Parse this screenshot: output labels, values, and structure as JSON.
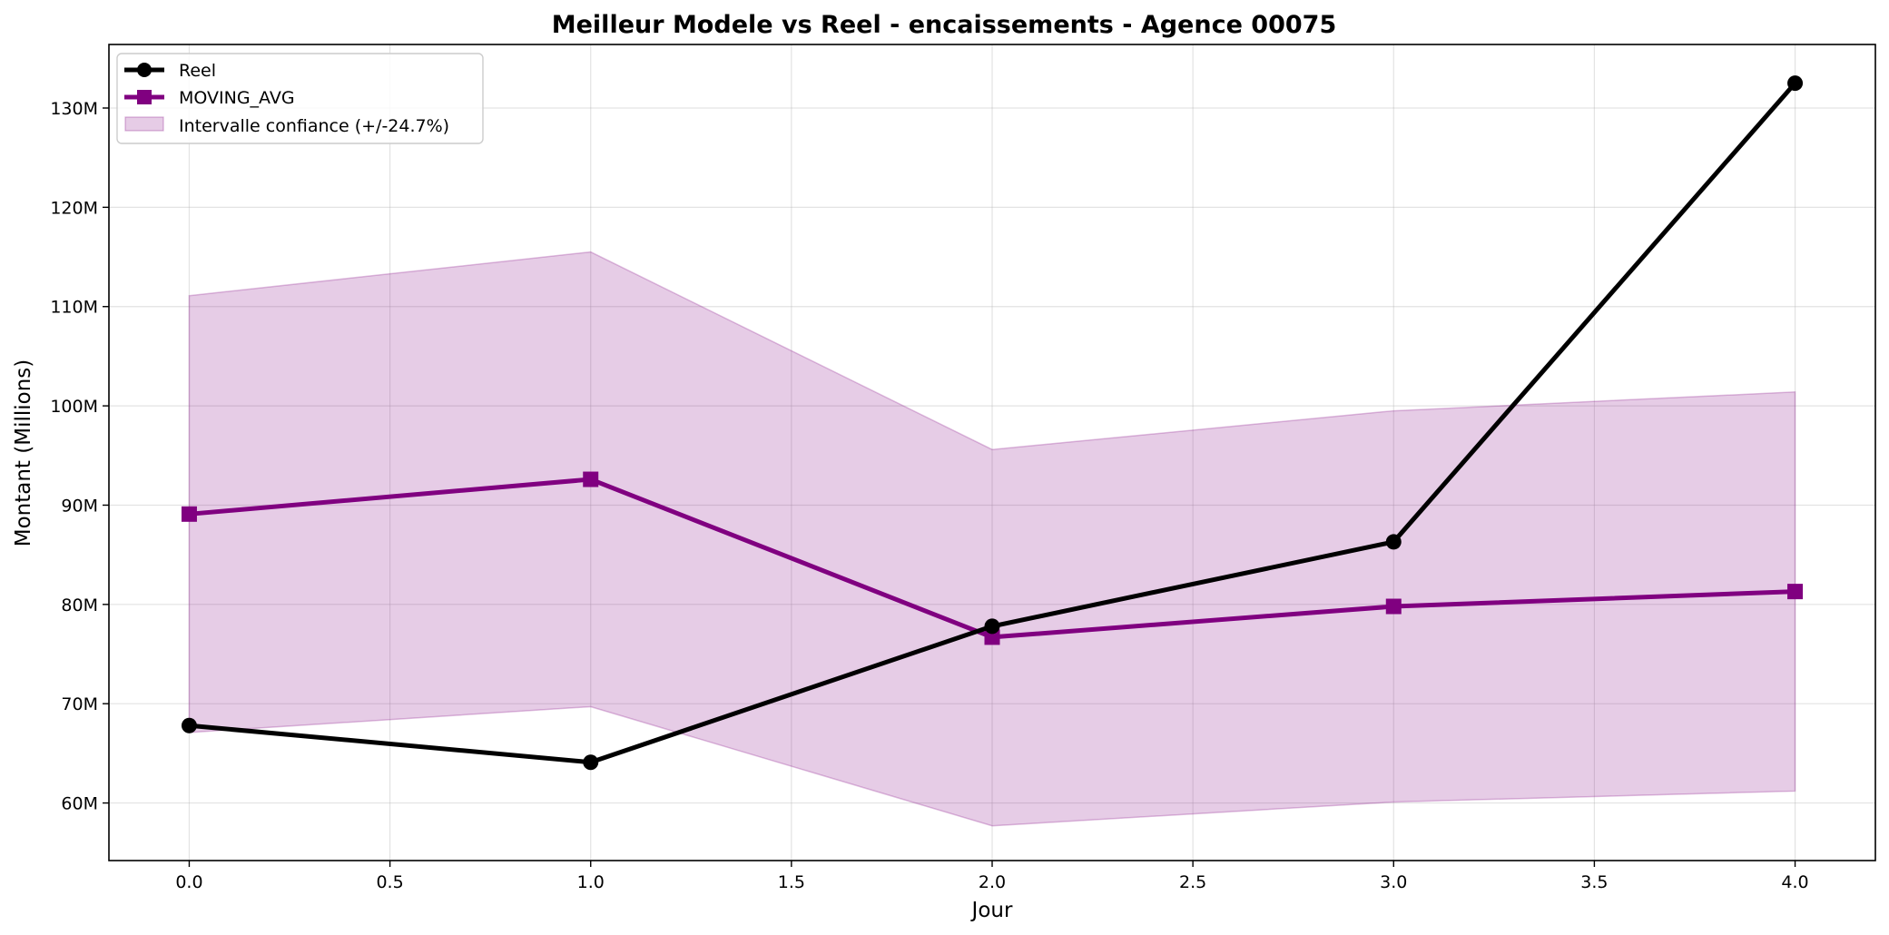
{
  "chart_data": {
    "type": "line",
    "title": "Meilleur Modele vs Reel - encaissements - Agence 00075",
    "xlabel": "Jour",
    "ylabel": "Montant (Millions)",
    "x": [
      0,
      1,
      2,
      3,
      4
    ],
    "xlim": [
      -0.2,
      4.2
    ],
    "ylim": [
      54.2,
      136.4
    ],
    "x_ticks": [
      0.0,
      0.5,
      1.0,
      1.5,
      2.0,
      2.5,
      3.0,
      3.5,
      4.0
    ],
    "x_tick_labels": [
      "0.0",
      "0.5",
      "1.0",
      "1.5",
      "2.0",
      "2.5",
      "3.0",
      "3.5",
      "4.0"
    ],
    "y_ticks": [
      60,
      70,
      80,
      90,
      100,
      110,
      120,
      130
    ],
    "y_tick_labels": [
      "60M",
      "70M",
      "80M",
      "90M",
      "100M",
      "110M",
      "120M",
      "130M"
    ],
    "grid": true,
    "legend_position": "top-left",
    "series": [
      {
        "name": "Reel",
        "values": [
          67.8,
          64.1,
          77.8,
          86.3,
          132.5
        ],
        "color": "#000000",
        "marker": "circle"
      },
      {
        "name": "MOVING_AVG",
        "values": [
          89.1,
          92.6,
          76.7,
          79.8,
          81.3
        ],
        "color": "#800080",
        "marker": "square"
      }
    ],
    "band": {
      "name": "Intervalle confiance (+/-24.7%)",
      "lower": [
        67.1,
        69.7,
        57.7,
        60.1,
        61.2
      ],
      "upper": [
        111.1,
        115.5,
        95.6,
        99.5,
        101.4
      ],
      "color": "#800080"
    }
  }
}
